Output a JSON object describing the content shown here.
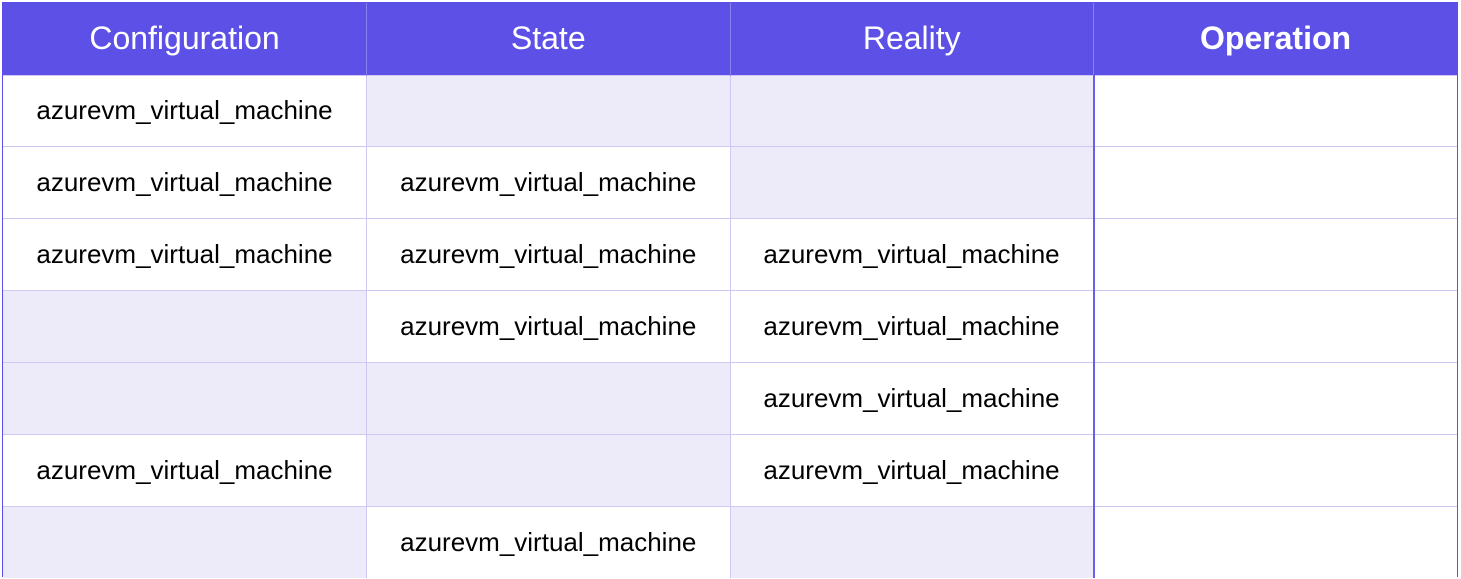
{
  "colors": {
    "header_bg": "#5d50e6",
    "header_text": "#ffffff",
    "empty_cell_bg": "#edebfa",
    "grid_line": "#cfc8f3"
  },
  "table": {
    "headers": [
      "Configuration",
      "State",
      "Reality",
      "Operation"
    ],
    "rows": [
      [
        "azurevm_virtual_machine",
        "",
        "",
        ""
      ],
      [
        "azurevm_virtual_machine",
        "azurevm_virtual_machine",
        "",
        ""
      ],
      [
        "azurevm_virtual_machine",
        "azurevm_virtual_machine",
        "azurevm_virtual_machine",
        ""
      ],
      [
        "",
        "azurevm_virtual_machine",
        "azurevm_virtual_machine",
        ""
      ],
      [
        "",
        "",
        "azurevm_virtual_machine",
        ""
      ],
      [
        "azurevm_virtual_machine",
        "",
        "azurevm_virtual_machine",
        ""
      ],
      [
        "",
        "azurevm_virtual_machine",
        "",
        ""
      ]
    ]
  }
}
